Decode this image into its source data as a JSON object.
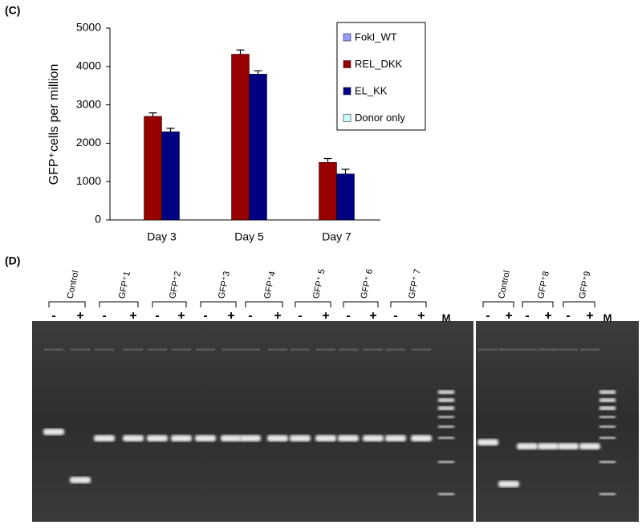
{
  "panel_label": "(C)",
  "chart_data": {
    "type": "bar",
    "y_label": "GFP⁺cells per million",
    "categories": [
      "Day 3",
      "Day 5",
      "Day 7"
    ],
    "series": [
      {
        "name": "FokI_WT",
        "color": "#9999ff",
        "values": [
          null,
          null,
          null
        ]
      },
      {
        "name": "REL_DKK",
        "color": "#990000",
        "values": [
          2700,
          4320,
          1500
        ],
        "errors": [
          90,
          110,
          100
        ]
      },
      {
        "name": "EL_KK",
        "color": "#000080",
        "values": [
          2300,
          3800,
          1200
        ],
        "errors": [
          90,
          90,
          120
        ]
      },
      {
        "name": "Donor only",
        "color": "#ccffff",
        "values": [
          null,
          null,
          null
        ]
      }
    ],
    "ylim": [
      0,
      5000
    ],
    "yticks": [
      0,
      1000,
      2000,
      3000,
      4000,
      5000
    ],
    "legend": "upper right",
    "grid": false
  },
  "gel": {
    "panel_label": "(D)",
    "left": {
      "groups": [
        {
          "label": "Control",
          "lanes": [
            "-",
            "+"
          ]
        },
        {
          "label": "GFP⁺1",
          "lanes": [
            "-",
            "+"
          ]
        },
        {
          "label": "GFP⁺2",
          "lanes": [
            "-",
            "+"
          ]
        },
        {
          "label": "GFP⁺3",
          "lanes": [
            "-",
            "+"
          ]
        },
        {
          "label": "GFP⁺4",
          "lanes": [
            "-",
            "+"
          ]
        },
        {
          "label": "GFP⁺ 5",
          "lanes": [
            "-",
            "+"
          ]
        },
        {
          "label": "GFP⁺ 6",
          "lanes": [
            "-",
            "+"
          ]
        },
        {
          "label": "GFP⁺ 7",
          "lanes": [
            "-",
            "+"
          ]
        }
      ],
      "marker": "M"
    },
    "right": {
      "groups": [
        {
          "label": "Control",
          "lanes": [
            "-",
            "+"
          ]
        },
        {
          "label": "GFP⁺8",
          "lanes": [
            "-",
            "+"
          ]
        },
        {
          "label": "GFP⁺9",
          "lanes": [
            "-",
            "+"
          ]
        }
      ],
      "marker": "M"
    }
  }
}
